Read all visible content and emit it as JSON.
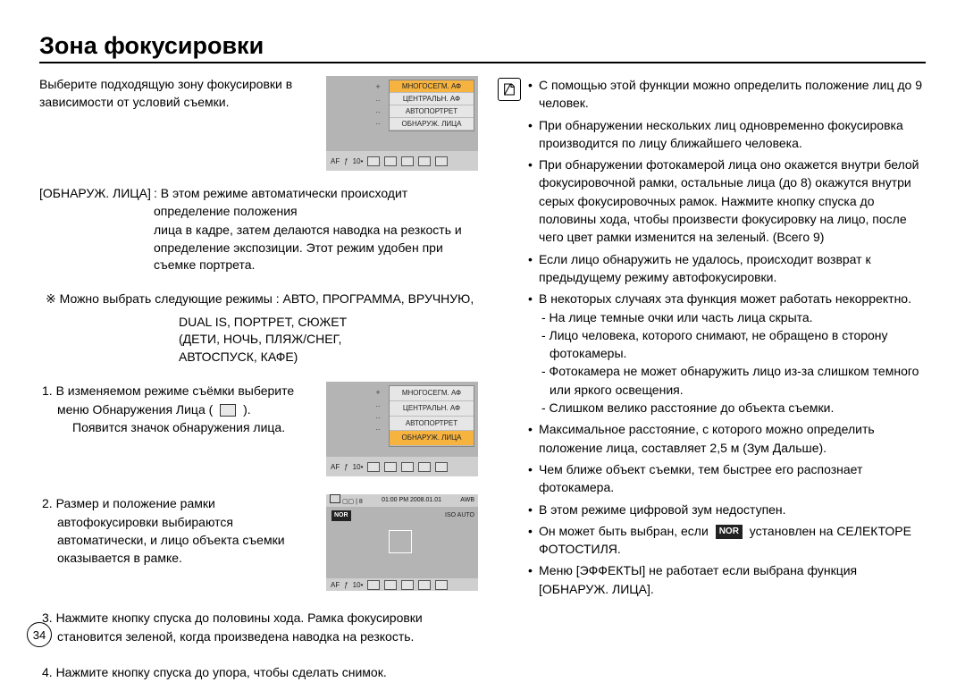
{
  "title": "Зона фокусировки",
  "pageNumber": "34",
  "left": {
    "intro": "Выберите подходящую зону фокусировки в зависимости от условий съемки.",
    "menu": [
      "МНОГОСЕГМ. АФ",
      "ЦЕНТРАЛЬН. АФ",
      "АВТОПОРТРЕТ",
      "ОБНАРУЖ. ЛИЦА"
    ],
    "menuSelectedIndex": 0,
    "bottomBarText": [
      "AF",
      "ƒ",
      "10•"
    ],
    "modeLabel": "[ОБНАРУЖ. ЛИЦА]",
    "modeBody1": ": В этом режиме автоматически происходит определение положения",
    "modeBody2": "лица в кадре, затем делаются наводка на резкость и определение экспозиции. Этот режим удобен при съемке портрета.",
    "asterisk": "※ Можно выбрать следующие режимы : АВТО, ПРОГРАММА, ВРУЧНУЮ,",
    "asteriskLines": [
      "DUAL IS, ПОРТРЕТ, СЮЖЕТ",
      "(ДЕТИ, НОЧЬ, ПЛЯЖ/СНЕГ,",
      "АВТОСПУСК, КАФЕ)"
    ],
    "step1a": "1. В изменяемом режиме съёмки выберите меню Обнаружения Лица (",
    "step1b": ").",
    "step1c": "Появится значок обнаружения лица.",
    "step2": "2. Размер и положение рамки автофокусировки выбираются автоматически, и лицо объекта съемки оказывается в рамке.",
    "step3": "3. Нажмите кнопку спуска до половины хода. Рамка фокусировки становится зеленой, когда произведена наводка на резкость.",
    "step4": "4. Нажмите кнопку спуска до упора, чтобы сделать снимок.",
    "lcdTopLeft": "▢▢ | 8",
    "lcdTopCenter": "01:00 PM 2008.01.01",
    "lcdTopRight": "AWB",
    "lcdNor": "NOR",
    "lcdRightIcons": "ISO\nAUTO"
  },
  "right": {
    "items": [
      {
        "text": "С помощью этой функции можно определить положение лиц до 9 человек."
      },
      {
        "text": "При обнаружении нескольких лиц одновременно фокусировка производится по лицу ближайшего человека."
      },
      {
        "text": "При обнаружении фотокамерой лица оно окажется внутри белой фокусировочной рамки, остальные лица (до 8) окажутся внутри серых фокусировочных рамок. Нажмите кнопку спуска до половины хода, чтобы произвести фокусировку на лицо, после чего цвет рамки изменится на зеленый. (Всего 9)"
      },
      {
        "text": "Если лицо обнаружить не удалось, происходит возврат к предыдущему режиму автофокусировки."
      },
      {
        "text": "В некоторых случаях эта функция может работать некорректно.",
        "subs": [
          "На лице темные очки или часть лица скрыта.",
          "Лицо человека, которого снимают, не обращено в сторону фотокамеры.",
          "Фотокамера не может обнаружить лицо из-за слишком темного или яркого освещения.",
          "Слишком велико расстояние до объекта съемки."
        ]
      },
      {
        "text": "Максимальное расстояние, с которого можно определить положение лица, составляет 2,5 м (Зум Дальше)."
      },
      {
        "text": "Чем ближе объект съемки, тем быстрее его распознает фотокамера."
      },
      {
        "text": "В этом режиме цифровой зум недоступен."
      },
      {
        "textBeforeNor": "Он может быть выбран, если ",
        "textAfterNor": " установлен на СЕЛЕКТОРЕ ФОТОСТИЛЯ.",
        "nor": "NOR",
        "isNorLine": true
      },
      {
        "text": "Меню [ЭФФЕКТЫ] не работает если выбрана функция [ОБНАРУЖ. ЛИЦА]."
      }
    ]
  },
  "colors": {
    "screenshotBg": "#b4b4b4",
    "menuBg": "#e6e6e6",
    "menuSelected": "#f6b340",
    "barBg": "#cfcfcf"
  }
}
